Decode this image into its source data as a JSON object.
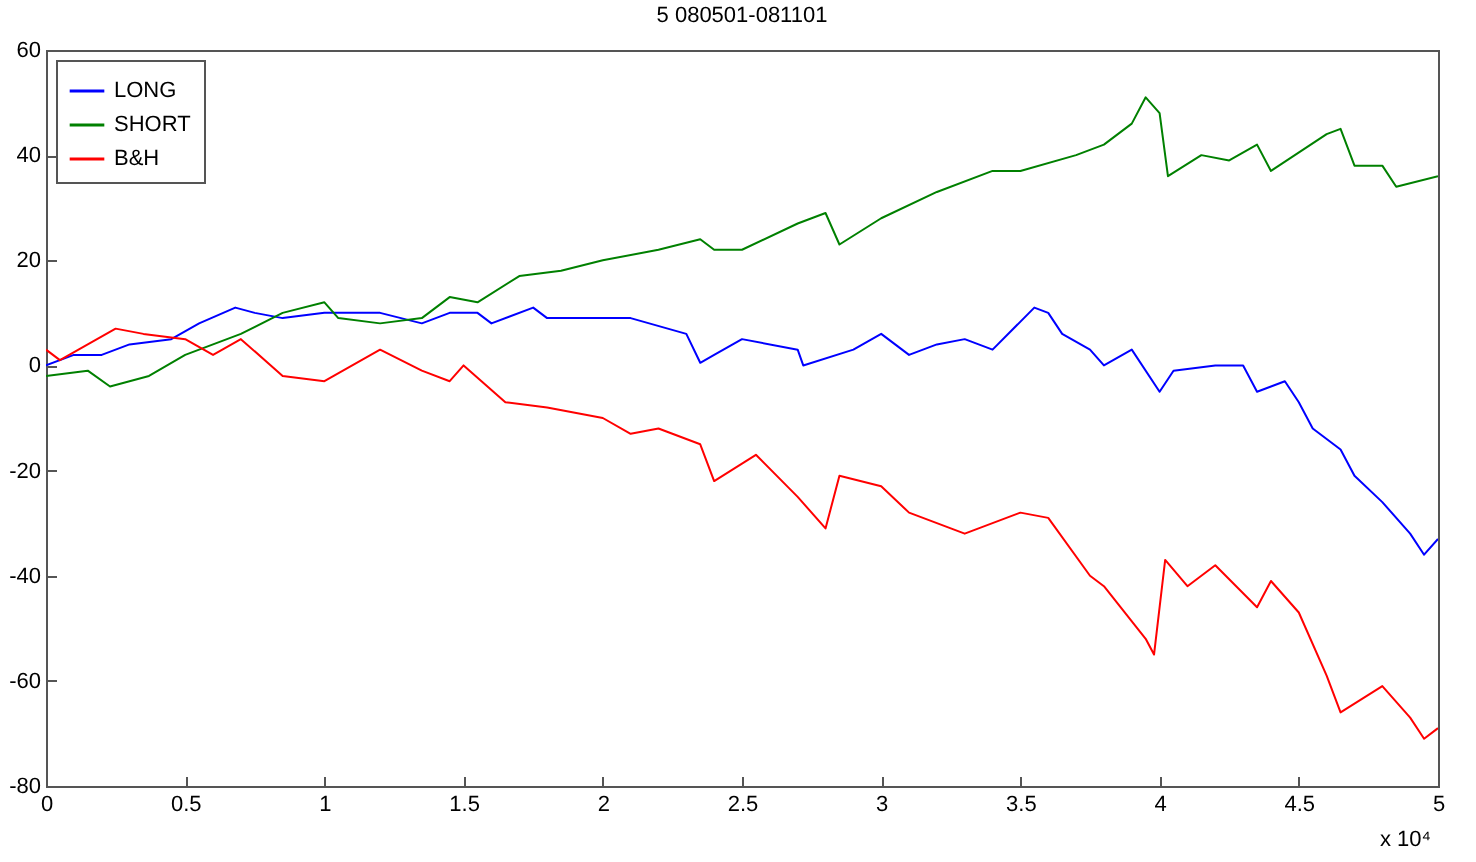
{
  "chart_data": {
    "type": "line",
    "title": "5 080501-081101",
    "annotations": [
      "x 10⁴"
    ],
    "xlim": [
      0,
      5
    ],
    "xticks": [
      0,
      0.5,
      1,
      1.5,
      2,
      2.5,
      3,
      3.5,
      4,
      4.5,
      5
    ],
    "ylim": [
      -80,
      60
    ],
    "yticks": [
      -80,
      -60,
      -40,
      -20,
      0,
      20,
      40,
      60
    ],
    "grid": false,
    "legend": "top left",
    "series": [
      {
        "name": "LONG",
        "color": "#0000ff",
        "x": [
          0,
          0.1,
          0.2,
          0.3,
          0.45,
          0.55,
          0.68,
          0.75,
          0.85,
          1.0,
          1.2,
          1.35,
          1.45,
          1.55,
          1.6,
          1.75,
          1.8,
          2.0,
          2.1,
          2.3,
          2.35,
          2.4,
          2.5,
          2.7,
          2.72,
          2.9,
          3.0,
          3.1,
          3.2,
          3.3,
          3.4,
          3.55,
          3.6,
          3.65,
          3.75,
          3.8,
          3.9,
          4.0,
          4.05,
          4.2,
          4.3,
          4.35,
          4.45,
          4.5,
          4.55,
          4.65,
          4.7,
          4.8,
          4.9,
          4.95,
          5.0
        ],
        "values": [
          0,
          2,
          2,
          4,
          5,
          8,
          11,
          10,
          9,
          10,
          10,
          8,
          10,
          10,
          8,
          11,
          9,
          9,
          9,
          6,
          0.5,
          2,
          5,
          3,
          0,
          3,
          6,
          2,
          4,
          5,
          3,
          11,
          10,
          6,
          3,
          0,
          3,
          -5,
          -1,
          0,
          0,
          -5,
          -3,
          -7,
          -12,
          -16,
          -21,
          -26,
          -32,
          -36,
          -33
        ]
      },
      {
        "name": "SHORT",
        "color": "#008000",
        "x": [
          0,
          0.15,
          0.23,
          0.37,
          0.5,
          0.7,
          0.85,
          1.0,
          1.05,
          1.2,
          1.35,
          1.45,
          1.55,
          1.7,
          1.85,
          2.0,
          2.2,
          2.35,
          2.4,
          2.5,
          2.7,
          2.8,
          2.85,
          3.0,
          3.2,
          3.4,
          3.5,
          3.7,
          3.8,
          3.9,
          3.95,
          4.0,
          4.03,
          4.15,
          4.25,
          4.35,
          4.4,
          4.6,
          4.65,
          4.7,
          4.8,
          4.85,
          5.0
        ],
        "values": [
          -2,
          -1,
          -4,
          -2,
          2,
          6,
          10,
          12,
          9,
          8,
          9,
          13,
          12,
          17,
          18,
          20,
          22,
          24,
          22,
          22,
          27,
          29,
          23,
          28,
          33,
          37,
          37,
          40,
          42,
          46,
          51,
          48,
          36,
          40,
          39,
          42,
          37,
          44,
          45,
          38,
          38,
          34,
          36
        ]
      },
      {
        "name": "B&H",
        "color": "#ff0000",
        "x": [
          0,
          0.05,
          0.15,
          0.25,
          0.35,
          0.5,
          0.6,
          0.7,
          0.85,
          1.0,
          1.2,
          1.35,
          1.45,
          1.5,
          1.65,
          1.8,
          2.0,
          2.1,
          2.2,
          2.35,
          2.4,
          2.55,
          2.7,
          2.8,
          2.85,
          3.0,
          3.1,
          3.3,
          3.5,
          3.6,
          3.75,
          3.8,
          3.95,
          3.98,
          4.02,
          4.1,
          4.2,
          4.35,
          4.4,
          4.5,
          4.6,
          4.65,
          4.8,
          4.9,
          4.95,
          5.0
        ],
        "values": [
          3,
          1,
          4,
          7,
          6,
          5,
          2,
          5,
          -2,
          -3,
          3,
          -1,
          -3,
          0,
          -7,
          -8,
          -10,
          -13,
          -12,
          -15,
          -22,
          -17,
          -25,
          -31,
          -21,
          -23,
          -28,
          -32,
          -28,
          -29,
          -40,
          -42,
          -52,
          -55,
          -37,
          -42,
          -38,
          -46,
          -41,
          -47,
          -59,
          -66,
          -61,
          -67,
          -71,
          -69
        ]
      }
    ]
  }
}
